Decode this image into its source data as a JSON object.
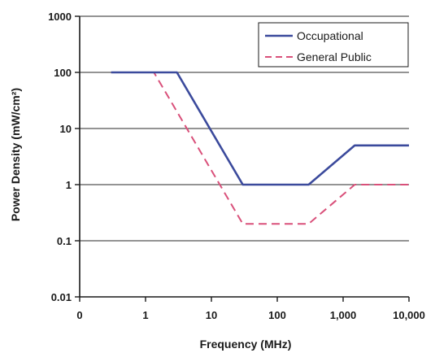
{
  "chart_data": {
    "type": "line",
    "title": "",
    "xlabel": "Frequency (MHz)",
    "ylabel": "Power Density (mW/cm²)",
    "x_scale": "log",
    "y_scale": "log",
    "xlim": [
      0.1,
      10000
    ],
    "ylim": [
      0.01,
      1000
    ],
    "x_tick_values": [
      0.1,
      1,
      10,
      100,
      1000,
      10000
    ],
    "x_tick_labels": [
      "0",
      "1",
      "10",
      "100",
      "1,000",
      "10,000"
    ],
    "y_tick_values": [
      0.01,
      0.1,
      1,
      10,
      100,
      1000
    ],
    "y_tick_labels": [
      "0.01",
      "0.1",
      "1",
      "10",
      "100",
      "1000"
    ],
    "grid": "horizontal",
    "legend_position": "top-right",
    "series": [
      {
        "name": "Occupational",
        "color": "#3b4a9c",
        "style": "solid",
        "x": [
          0.3,
          3,
          30,
          300,
          1500,
          10000
        ],
        "y": [
          100,
          100,
          1,
          1,
          5,
          5
        ]
      },
      {
        "name": "General Public",
        "color": "#d9507a",
        "style": "dashed",
        "x": [
          0.3,
          1.34,
          30,
          300,
          1500,
          10000
        ],
        "y": [
          100,
          100,
          0.2,
          0.2,
          1,
          1
        ]
      }
    ]
  }
}
